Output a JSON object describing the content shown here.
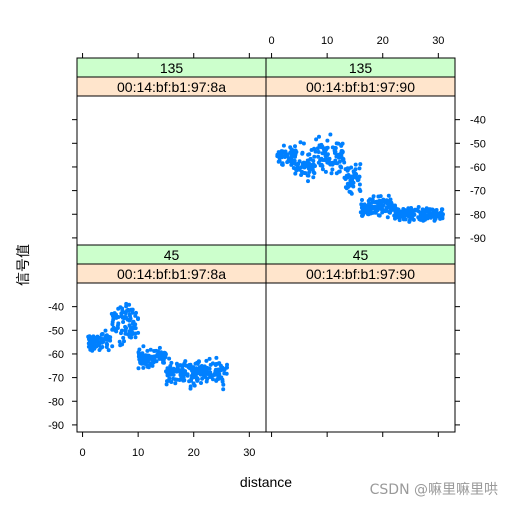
{
  "chart_data": {
    "type": "scatter",
    "layout": "lattice 2x2 panels with two-level strips",
    "xlabel": "distance",
    "ylabel": "信号值",
    "xlim": [
      -1,
      33
    ],
    "ylim": [
      -93,
      -30
    ],
    "x_ticks": [
      0,
      10,
      20,
      30
    ],
    "y_ticks": [
      -40,
      -50,
      -60,
      -70,
      -80,
      -90
    ],
    "point_color": "#0080ff",
    "strip_top_color": "#ccffcc",
    "strip_bottom_color": "#ffe5cc",
    "panels": [
      {
        "row": "top",
        "col": "left",
        "strip_top": "135",
        "strip_bottom": "00:14:bf:b1:97:8a",
        "points": []
      },
      {
        "row": "top",
        "col": "right",
        "strip_top": "135",
        "strip_bottom": "00:14:bf:b1:97:90",
        "segments": [
          {
            "x_range": [
              1,
              4
            ],
            "y_center": -55,
            "spread": 6
          },
          {
            "x_range": [
              4,
              8
            ],
            "y_center": -58,
            "spread": 10
          },
          {
            "x_range": [
              8,
              13
            ],
            "y_center": -55,
            "spread": 12
          },
          {
            "x_range": [
              13,
              16
            ],
            "y_center": -65,
            "spread": 8
          },
          {
            "x_range": [
              16,
              22
            ],
            "y_center": -77,
            "spread": 6
          },
          {
            "x_range": [
              22,
              31
            ],
            "y_center": -80,
            "spread": 4
          }
        ]
      },
      {
        "row": "bottom",
        "col": "left",
        "strip_top": "45",
        "strip_bottom": "00:14:bf:b1:97:8a",
        "segments": [
          {
            "x_range": [
              1,
              5
            ],
            "y_center": -55,
            "spread": 6
          },
          {
            "x_range": [
              5,
              10
            ],
            "y_center": -47,
            "spread": 12
          },
          {
            "x_range": [
              10,
              15
            ],
            "y_center": -62,
            "spread": 6
          },
          {
            "x_range": [
              15,
              26
            ],
            "y_center": -68,
            "spread": 8
          }
        ]
      },
      {
        "row": "bottom",
        "col": "right",
        "strip_top": "45",
        "strip_bottom": "00:14:bf:b1:97:90",
        "points": []
      }
    ]
  },
  "watermark": "CSDN @嘛里嘛里哄"
}
